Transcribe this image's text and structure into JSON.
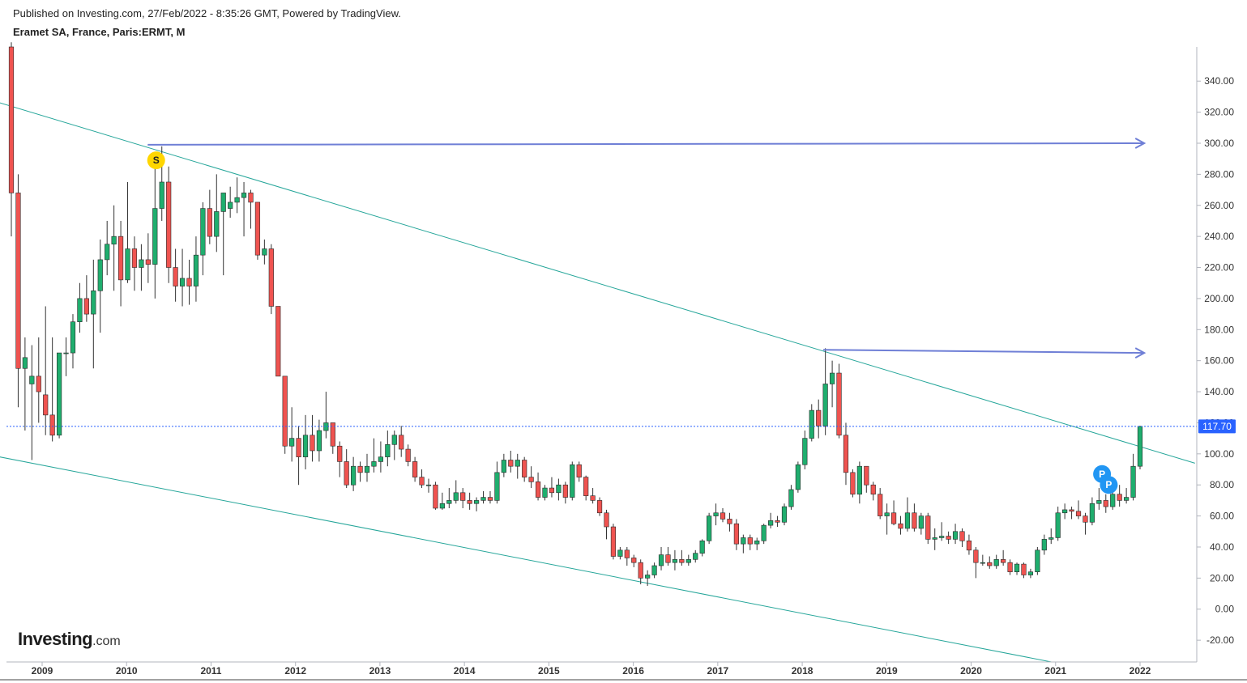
{
  "header": {
    "published": "Published on Investing.com, 27/Feb/2022 - 8:35:26 GMT, Powered by TradingView.",
    "symbol": "Eramet SA, France, Paris:ERMT, M"
  },
  "logo": {
    "brand": "Investing",
    "domain": ".com"
  },
  "colors": {
    "up": "#26a69a",
    "upFill": "#1fae6e",
    "down": "#ef5350",
    "trend": "#26a69a",
    "arrow": "#6f7fd6",
    "price": "#2962ff"
  },
  "chart_data": {
    "type": "candlestick",
    "interval": "M",
    "ylim": [
      -34,
      362
    ],
    "y_ticks": [
      "340.00",
      "320.00",
      "300.00",
      "280.00",
      "260.00",
      "240.00",
      "220.00",
      "200.00",
      "180.00",
      "160.00",
      "140.00",
      "120.00",
      "100.00",
      "80.00",
      "60.00",
      "40.00",
      "20.00",
      "0.00",
      "-20.00"
    ],
    "x_ticks": [
      "2009",
      "2010",
      "2011",
      "2012",
      "2013",
      "2014",
      "2015",
      "2016",
      "2017",
      "2018",
      "2019",
      "2020",
      "2021",
      "2022"
    ],
    "x_tick_dates": [
      2009.0,
      2010.0,
      2011.0,
      2012.0,
      2013.0,
      2014.0,
      2015.0,
      2016.0,
      2017.0,
      2018.0,
      2019.0,
      2020.0,
      2021.0,
      2022.0
    ],
    "last_price": "117.70",
    "last_price_value": 117.7,
    "candles": [
      [
        "2008-06",
        362,
        365,
        240,
        268
      ],
      [
        "2008-07",
        268,
        280,
        130,
        155
      ],
      [
        "2008-08",
        155,
        175,
        115,
        162
      ],
      [
        "2008-09",
        145,
        170,
        96,
        150
      ],
      [
        "2008-10",
        150,
        175,
        120,
        140
      ],
      [
        "2008-11",
        138,
        195,
        112,
        125
      ],
      [
        "2008-12",
        125,
        175,
        108,
        112
      ],
      [
        "2009-01",
        112,
        165,
        110,
        165
      ],
      [
        "2009-02",
        165,
        175,
        150,
        165
      ],
      [
        "2009-03",
        165,
        190,
        155,
        185
      ],
      [
        "2009-04",
        185,
        210,
        178,
        200
      ],
      [
        "2009-05",
        200,
        215,
        185,
        190
      ],
      [
        "2009-06",
        190,
        225,
        155,
        205
      ],
      [
        "2009-07",
        205,
        238,
        178,
        225
      ],
      [
        "2009-08",
        225,
        250,
        215,
        235
      ],
      [
        "2009-09",
        235,
        260,
        205,
        240
      ],
      [
        "2009-10",
        240,
        250,
        195,
        212
      ],
      [
        "2009-11",
        212,
        275,
        210,
        232
      ],
      [
        "2009-12",
        232,
        240,
        205,
        220
      ],
      [
        "2010-01",
        220,
        235,
        205,
        225
      ],
      [
        "2010-02",
        225,
        242,
        210,
        222
      ],
      [
        "2010-03",
        222,
        290,
        200,
        258
      ],
      [
        "2010-04",
        258,
        298,
        250,
        275
      ],
      [
        "2010-05",
        275,
        285,
        210,
        220
      ],
      [
        "2010-06",
        220,
        232,
        198,
        208
      ],
      [
        "2010-07",
        208,
        232,
        195,
        213
      ],
      [
        "2010-08",
        213,
        225,
        196,
        208
      ],
      [
        "2010-09",
        208,
        240,
        198,
        228
      ],
      [
        "2010-10",
        228,
        262,
        215,
        258
      ],
      [
        "2010-11",
        258,
        270,
        235,
        240
      ],
      [
        "2010-12",
        240,
        280,
        230,
        256
      ],
      [
        "2010-13",
        256,
        265,
        215,
        268
      ],
      [
        "2011-01",
        258,
        272,
        252,
        262
      ],
      [
        "2011-02",
        262,
        278,
        255,
        265
      ],
      [
        "2011-03",
        265,
        275,
        240,
        268
      ],
      [
        "2011-04",
        268,
        270,
        245,
        262
      ],
      [
        "2011-05",
        262,
        262,
        225,
        228
      ],
      [
        "2011-06",
        228,
        238,
        222,
        232
      ],
      [
        "2011-07",
        232,
        235,
        190,
        195
      ],
      [
        "2011-08",
        195,
        195,
        150,
        150
      ],
      [
        "2011-09",
        150,
        150,
        100,
        105
      ],
      [
        "2011-10",
        105,
        130,
        95,
        110
      ],
      [
        "2011-11",
        110,
        118,
        80,
        98
      ],
      [
        "2011-12",
        98,
        125,
        90,
        112
      ],
      [
        "2012-01",
        112,
        125,
        95,
        102
      ],
      [
        "2012-02",
        102,
        122,
        95,
        115
      ],
      [
        "2012-03",
        115,
        140,
        110,
        120
      ],
      [
        "2012-04",
        120,
        120,
        100,
        105
      ],
      [
        "2012-05",
        105,
        108,
        85,
        95
      ],
      [
        "2012-06",
        95,
        103,
        78,
        80
      ],
      [
        "2012-07",
        80,
        98,
        76,
        92
      ],
      [
        "2012-08",
        92,
        95,
        82,
        88
      ],
      [
        "2012-09",
        88,
        100,
        82,
        92
      ],
      [
        "2012-10",
        92,
        110,
        88,
        95
      ],
      [
        "2012-11",
        95,
        108,
        88,
        98
      ],
      [
        "2012-12",
        98,
        115,
        92,
        106
      ],
      [
        "2013-01",
        106,
        115,
        96,
        112
      ],
      [
        "2013-02",
        112,
        118,
        98,
        103
      ],
      [
        "2013-03",
        103,
        106,
        92,
        95
      ],
      [
        "2013-04",
        95,
        98,
        82,
        85
      ],
      [
        "2013-05",
        85,
        90,
        78,
        80
      ],
      [
        "2013-06",
        80,
        84,
        75,
        80
      ],
      [
        "2013-07",
        80,
        82,
        64,
        65
      ],
      [
        "2013-08",
        65,
        75,
        64,
        68
      ],
      [
        "2013-09",
        68,
        78,
        65,
        70
      ],
      [
        "2013-10",
        70,
        83,
        68,
        75
      ],
      [
        "2013-11",
        75,
        78,
        65,
        70
      ],
      [
        "2013-12",
        70,
        75,
        64,
        68
      ],
      [
        "2014-01",
        68,
        72,
        63,
        70
      ],
      [
        "2014-02",
        70,
        76,
        68,
        72
      ],
      [
        "2014-03",
        72,
        76,
        68,
        70
      ],
      [
        "2014-04",
        70,
        95,
        68,
        88
      ],
      [
        "2014-05",
        88,
        100,
        85,
        96
      ],
      [
        "2014-06",
        96,
        102,
        88,
        92
      ],
      [
        "2014-07",
        92,
        100,
        84,
        96
      ],
      [
        "2014-08",
        96,
        98,
        82,
        85
      ],
      [
        "2014-09",
        85,
        92,
        78,
        82
      ],
      [
        "2014-10",
        82,
        88,
        70,
        72
      ],
      [
        "2014-11",
        72,
        80,
        70,
        78
      ],
      [
        "2014-12",
        78,
        85,
        72,
        75
      ],
      [
        "2015-01",
        75,
        84,
        70,
        80
      ],
      [
        "2015-02",
        80,
        82,
        68,
        72
      ],
      [
        "2015-03",
        72,
        95,
        70,
        93
      ],
      [
        "2015-04",
        93,
        95,
        82,
        85
      ],
      [
        "2015-05",
        85,
        86,
        70,
        73
      ],
      [
        "2015-06",
        73,
        78,
        68,
        70
      ],
      [
        "2015-07",
        70,
        72,
        60,
        62
      ],
      [
        "2015-08",
        62,
        64,
        45,
        53
      ],
      [
        "2015-09",
        53,
        55,
        32,
        34
      ],
      [
        "2015-10",
        34,
        40,
        32,
        38
      ],
      [
        "2015-11",
        38,
        40,
        28,
        33
      ],
      [
        "2015-12",
        33,
        35,
        27,
        30
      ],
      [
        "2016-01",
        30,
        32,
        16,
        20
      ],
      [
        "2016-02",
        20,
        25,
        15,
        22
      ],
      [
        "2016-03",
        22,
        30,
        20,
        28
      ],
      [
        "2016-04",
        28,
        40,
        25,
        35
      ],
      [
        "2016-05",
        35,
        40,
        28,
        30
      ],
      [
        "2016-06",
        30,
        38,
        25,
        32
      ],
      [
        "2016-07",
        32,
        38,
        28,
        30
      ],
      [
        "2016-08",
        30,
        35,
        28,
        32
      ],
      [
        "2016-09",
        32,
        38,
        30,
        36
      ],
      [
        "2016-10",
        36,
        45,
        34,
        44
      ],
      [
        "2016-11",
        44,
        62,
        42,
        60
      ],
      [
        "2016-12",
        60,
        68,
        54,
        62
      ],
      [
        "2017-01",
        62,
        65,
        56,
        58
      ],
      [
        "2017-02",
        58,
        62,
        50,
        55
      ],
      [
        "2017-03",
        55,
        58,
        38,
        42
      ],
      [
        "2017-04",
        42,
        48,
        36,
        46
      ],
      [
        "2017-05",
        46,
        48,
        38,
        42
      ],
      [
        "2017-06",
        42,
        46,
        38,
        44
      ],
      [
        "2017-07",
        44,
        55,
        42,
        54
      ],
      [
        "2017-08",
        54,
        62,
        52,
        57
      ],
      [
        "2017-09",
        57,
        60,
        53,
        56
      ],
      [
        "2017-10",
        56,
        68,
        54,
        66
      ],
      [
        "2017-11",
        66,
        80,
        64,
        77
      ],
      [
        "2017-12",
        77,
        95,
        75,
        93
      ],
      [
        "2018-01",
        93,
        115,
        90,
        110
      ],
      [
        "2018-02",
        110,
        132,
        108,
        128
      ],
      [
        "2018-03",
        128,
        135,
        110,
        118
      ],
      [
        "2018-04",
        118,
        168,
        112,
        145
      ],
      [
        "2018-05",
        145,
        160,
        130,
        152
      ],
      [
        "2018-06",
        152,
        158,
        110,
        112
      ],
      [
        "2018-07",
        112,
        120,
        80,
        88
      ],
      [
        "2018-08",
        88,
        90,
        72,
        74
      ],
      [
        "2018-09",
        74,
        95,
        68,
        92
      ],
      [
        "2018-10",
        92,
        92,
        75,
        80
      ],
      [
        "2018-11",
        80,
        82,
        70,
        74
      ],
      [
        "2018-12",
        74,
        78,
        58,
        60
      ],
      [
        "2019-01",
        60,
        68,
        48,
        62
      ],
      [
        "2019-02",
        62,
        70,
        54,
        55
      ],
      [
        "2019-03",
        55,
        60,
        48,
        52
      ],
      [
        "2019-04",
        52,
        72,
        50,
        62
      ],
      [
        "2019-05",
        62,
        68,
        50,
        52
      ],
      [
        "2019-06",
        52,
        62,
        48,
        60
      ],
      [
        "2019-07",
        60,
        62,
        42,
        45
      ],
      [
        "2019-08",
        45,
        52,
        38,
        46
      ],
      [
        "2019-09",
        46,
        56,
        44,
        47
      ],
      [
        "2019-10",
        47,
        50,
        42,
        45
      ],
      [
        "2019-11",
        45,
        55,
        42,
        50
      ],
      [
        "2019-12",
        50,
        52,
        40,
        44
      ],
      [
        "2020-01",
        44,
        48,
        35,
        38
      ],
      [
        "2020-02",
        38,
        40,
        20,
        30
      ],
      [
        "2020-03",
        30,
        35,
        28,
        30
      ],
      [
        "2020-04",
        30,
        34,
        26,
        28
      ],
      [
        "2020-05",
        28,
        35,
        26,
        32
      ],
      [
        "2020-06",
        32,
        38,
        28,
        30
      ],
      [
        "2020-07",
        30,
        32,
        22,
        24
      ],
      [
        "2020-08",
        24,
        30,
        22,
        29
      ],
      [
        "2020-09",
        29,
        30,
        20,
        22
      ],
      [
        "2020-10",
        22,
        26,
        20,
        24
      ],
      [
        "2020-11",
        24,
        40,
        22,
        38
      ],
      [
        "2020-12",
        38,
        48,
        35,
        45
      ],
      [
        "2021-01",
        45,
        52,
        42,
        46
      ],
      [
        "2021-02",
        46,
        66,
        44,
        62
      ],
      [
        "2021-03",
        62,
        68,
        58,
        64
      ],
      [
        "2021-04",
        64,
        66,
        58,
        63
      ],
      [
        "2021-05",
        63,
        70,
        58,
        60
      ],
      [
        "2021-06",
        60,
        62,
        48,
        56
      ],
      [
        "2021-07",
        56,
        72,
        54,
        68
      ],
      [
        "2021-08",
        68,
        78,
        64,
        70
      ],
      [
        "2021-09",
        70,
        74,
        62,
        66
      ],
      [
        "2021-10",
        66,
        85,
        64,
        74
      ],
      [
        "2021-11",
        74,
        80,
        66,
        70
      ],
      [
        "2021-12",
        70,
        78,
        68,
        72
      ],
      [
        "2022-01",
        72,
        100,
        70,
        92
      ],
      [
        "2022-02",
        92,
        118,
        90,
        117.7
      ]
    ],
    "markers": [
      {
        "label": "S",
        "date": 2010.35,
        "y": 289,
        "color": "#ffd600",
        "text": "#222"
      },
      {
        "label": "P",
        "date": 2021.55,
        "y": 87,
        "color": "#2196f3",
        "text": "#fff"
      },
      {
        "label": "P",
        "date": 2021.63,
        "y": 80,
        "color": "#2196f3",
        "text": "#fff"
      }
    ],
    "trend_lines": [
      {
        "from": [
          2008.5,
          326
        ],
        "to": [
          2022.65,
          94
        ]
      },
      {
        "from": [
          2008.5,
          98
        ],
        "to": [
          2020.95,
          -34
        ]
      }
    ],
    "arrows": [
      {
        "from": [
          2010.25,
          299
        ],
        "to": [
          2022.05,
          300
        ]
      },
      {
        "from": [
          2018.25,
          167
        ],
        "to": [
          2022.05,
          165
        ]
      }
    ]
  }
}
